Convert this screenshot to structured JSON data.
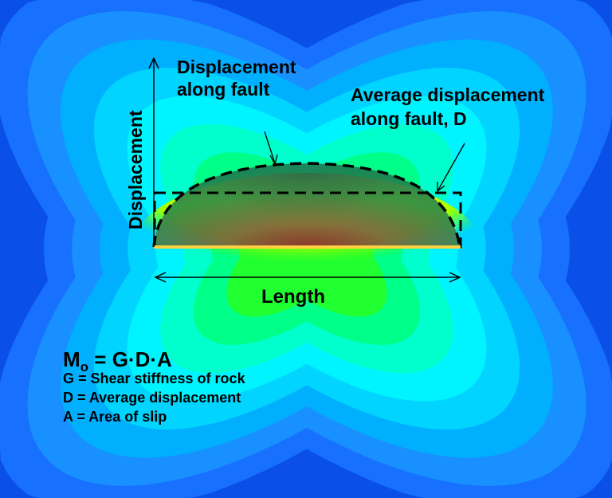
{
  "labels": {
    "curve_line1": "Displacement",
    "curve_line2": "along fault",
    "avg_line1": "Average displacement",
    "avg_line2": "along fault, D",
    "y_axis": "Displacement",
    "length": "Length"
  },
  "formula": {
    "m": "M",
    "sub": "o",
    "rhs": " = G·D·A",
    "definitions": [
      "G = Shear stiffness of rock",
      "D = Average displacement",
      "A = Area of slip"
    ]
  },
  "colors": {
    "contours": [
      "#0a50e8",
      "#1870ff",
      "#1890ff",
      "#00b0ff",
      "#00d4ff",
      "#00f4ff",
      "#00ffcc",
      "#00ff88",
      "#20ff30"
    ],
    "displacement_fill": "#1e7850",
    "fault": "#ffd040"
  }
}
